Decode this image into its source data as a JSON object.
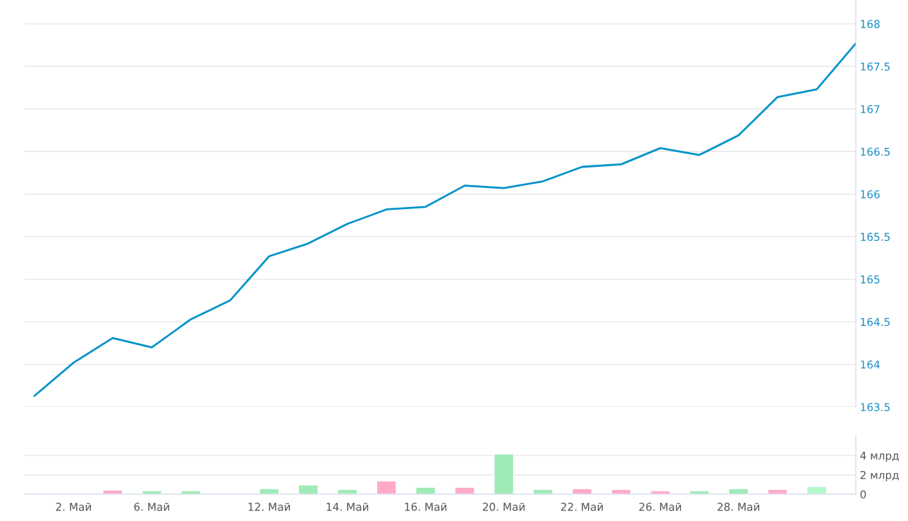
{
  "chart_data": [
    {
      "type": "line",
      "categories": [
        null,
        null,
        null,
        null,
        null,
        null,
        null,
        null,
        null,
        null,
        null,
        null,
        null,
        null,
        null,
        null,
        null,
        null,
        null,
        null,
        null,
        null
      ],
      "series": [
        {
          "color": "#0093c8",
          "values": [
            163.63,
            164.02,
            164.31,
            164.2,
            164.53,
            164.75,
            165.27,
            165.42,
            165.65,
            165.82,
            165.85,
            166.1,
            166.07,
            166.15,
            166.32,
            166.35,
            166.54,
            166.46,
            166.69,
            167.14,
            167.23,
            167.77
          ]
        }
      ],
      "ylim": [
        163.5,
        168.28
      ],
      "yticks": [
        163.5,
        164,
        164.5,
        165,
        165.5,
        166,
        166.5,
        167,
        167.5,
        168
      ],
      "grid": "y",
      "tick_labels": "y",
      "legend": false,
      "marker": "none",
      "line_style": "solid"
    },
    {
      "type": "bar",
      "categories": [
        null,
        "2. Май",
        null,
        "6. Май",
        null,
        null,
        "12. Май",
        null,
        "14. Май",
        null,
        "16. Май",
        null,
        "20. Май",
        null,
        "22. Май",
        null,
        "26. Май",
        null,
        "28. Май",
        null,
        null,
        null
      ],
      "values": [
        null,
        null,
        0.44,
        0.36,
        0.36,
        null,
        0.58,
        0.95,
        0.5,
        1.38,
        0.73,
        0.73,
        4.15,
        0.5,
        0.58,
        0.5,
        0.36,
        0.36,
        0.58,
        0.5,
        0.8,
        null
      ],
      "colors": [
        "#a0eab8",
        "#a0eab8",
        "#ffabc8",
        "#a0eab8",
        "#a0eab8",
        "#a0eab8",
        "#a0eab8",
        "#a0eab8",
        "#a0eab8",
        "#ffabc8",
        "#a0eab8",
        "#ffabc8",
        "#a0eab8",
        "#a0eab8",
        "#ffabc8",
        "#ffabc8",
        "#ffabc8",
        "#a0eab8",
        "#a0eab8",
        "#ffabc8",
        "#b3f7cb",
        "#a0eab8"
      ],
      "ylim": [
        0,
        6.1
      ],
      "yticks": [
        0,
        {
          "value": 2,
          "label": "2 млрд"
        },
        {
          "value": 4,
          "label": "4 млрд"
        }
      ],
      "grid": "y",
      "legend": false
    }
  ]
}
